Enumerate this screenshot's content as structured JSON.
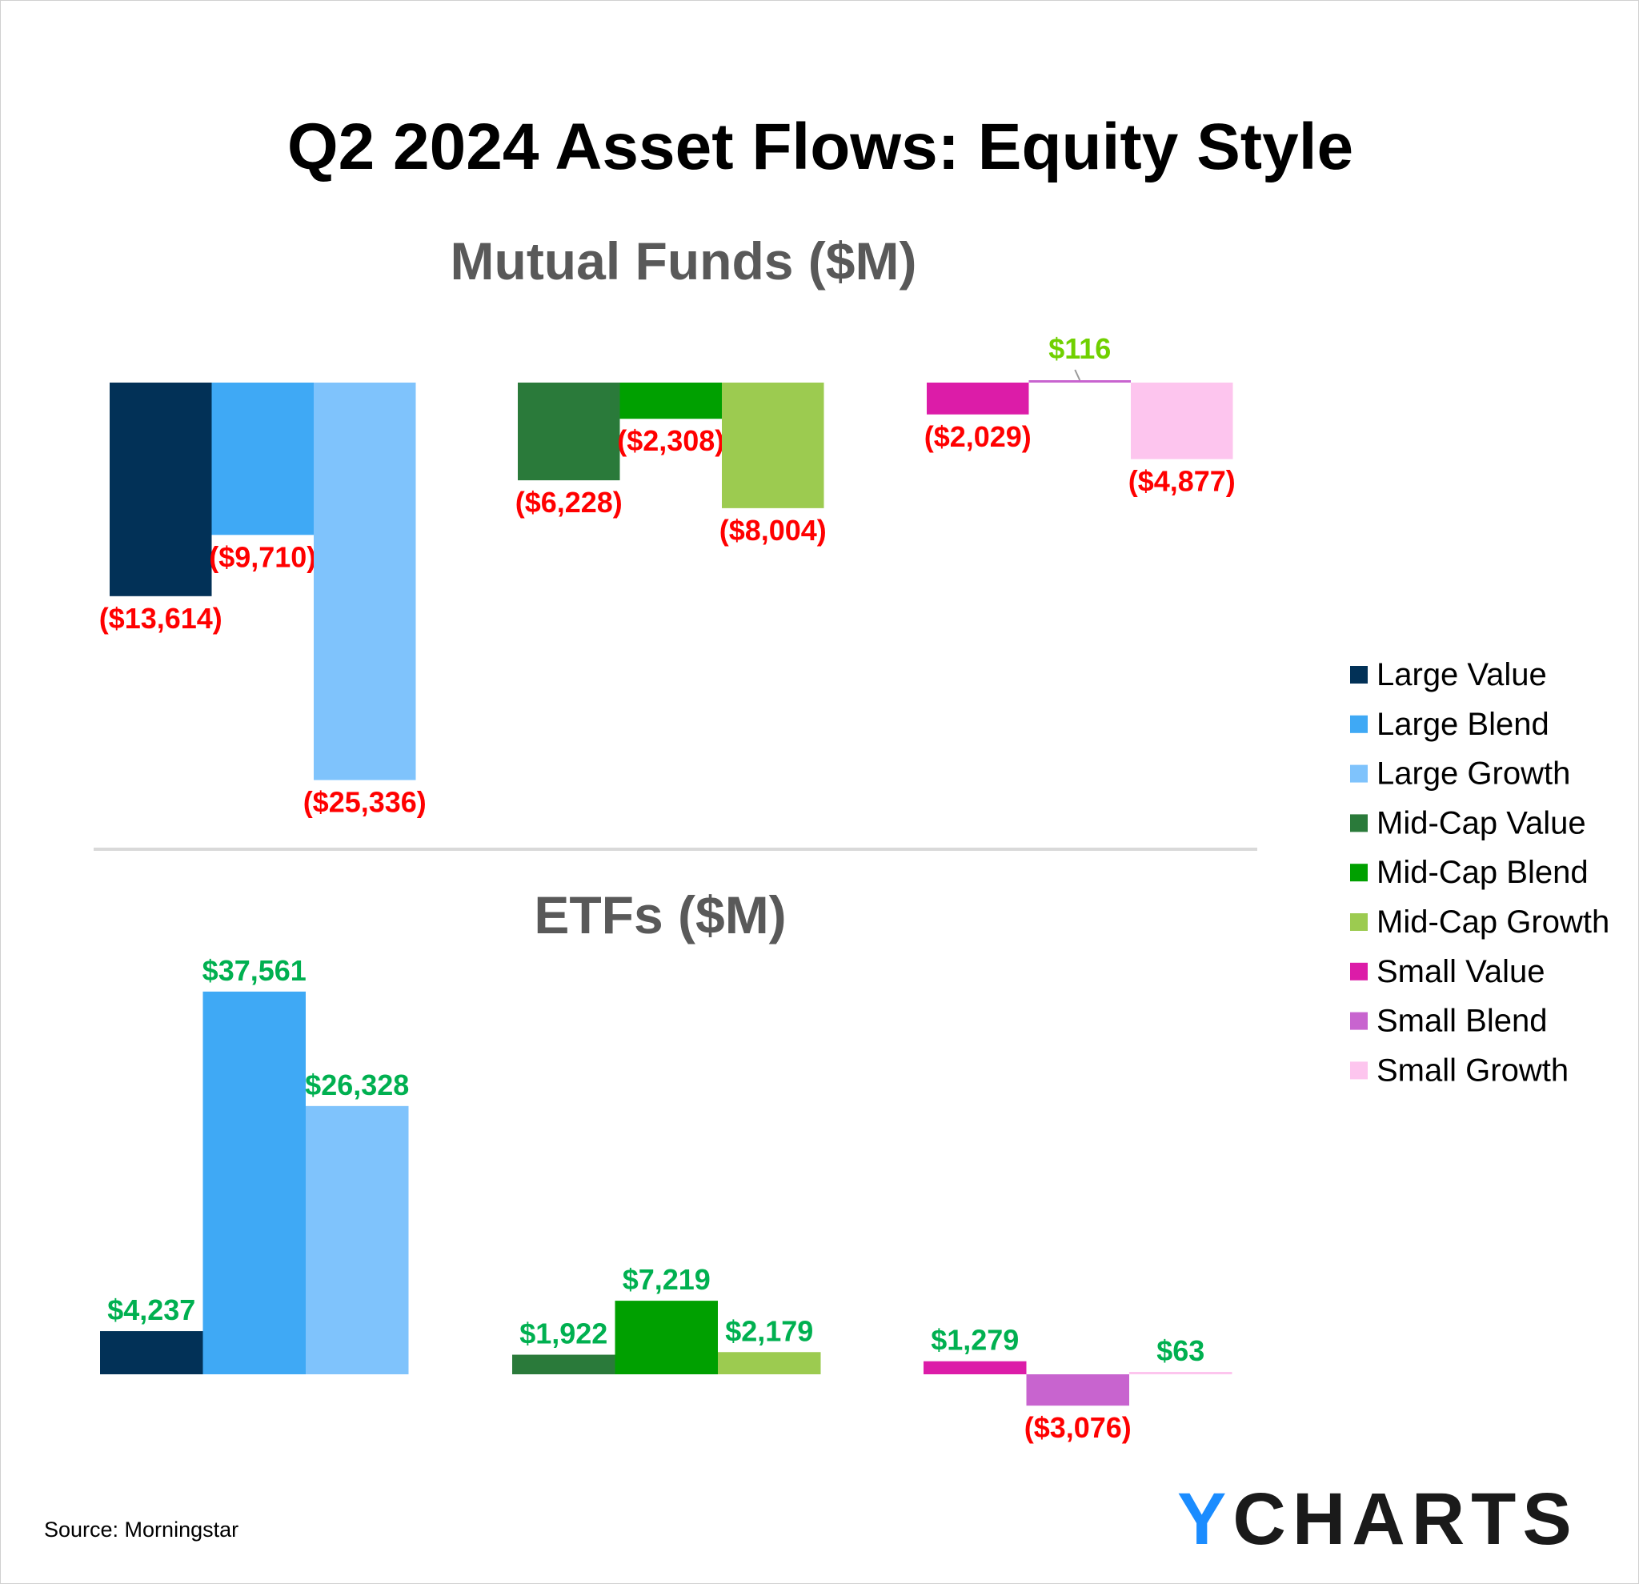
{
  "chart_data": [
    {
      "type": "bar",
      "title": "Q2 2024 Asset Flows: Equity Style",
      "subtitle": "Mutual Funds ($M)",
      "categories": [
        "Large Value",
        "Large Blend",
        "Large Growth",
        "Mid-Cap Value",
        "Mid-Cap Blend",
        "Mid-Cap Growth",
        "Small Value",
        "Small Blend",
        "Small Growth"
      ],
      "values": [
        -13614,
        -9710,
        -25336,
        -6228,
        -2308,
        -8004,
        -2029,
        116,
        -4877
      ],
      "data_labels": [
        "($13,614)",
        "($9,710)",
        "($25,336)",
        "($6,228)",
        "($2,308)",
        "($8,004)",
        "($2,029)",
        "$116",
        "($4,877)"
      ],
      "grid": false
    },
    {
      "type": "bar",
      "subtitle": "ETFs ($M)",
      "categories": [
        "Large Value",
        "Large Blend",
        "Large Growth",
        "Mid-Cap Value",
        "Mid-Cap Blend",
        "Mid-Cap Growth",
        "Small Value",
        "Small Blend",
        "Small Growth"
      ],
      "values": [
        4237,
        37561,
        26328,
        1922,
        7219,
        2179,
        1279,
        -3076,
        63
      ],
      "data_labels": [
        "$4,237",
        "$37,561",
        "$26,328",
        "$1,922",
        "$7,219",
        "$2,179",
        "$1,279",
        "($3,076)",
        "$63"
      ],
      "grid": false
    }
  ],
  "legend": {
    "placement": "right",
    "items": [
      "Large Value",
      "Large Blend",
      "Large Growth",
      "Mid-Cap Value",
      "Mid-Cap Blend",
      "Mid-Cap Growth",
      "Small Value",
      "Small Blend",
      "Small Growth"
    ]
  },
  "colors": {
    "series": [
      "#023157",
      "#3fa9f5",
      "#7fc3fc",
      "#2a7a3a",
      "#00a000",
      "#9ccb50",
      "#dc1ca8",
      "#c864cf",
      "#fdc5ee"
    ],
    "positive_label": "#00b050",
    "positive_label_small": "#70d000",
    "negative_label": "#ff0000"
  },
  "source": "Source: Morningstar",
  "logo": "YCHARTS"
}
